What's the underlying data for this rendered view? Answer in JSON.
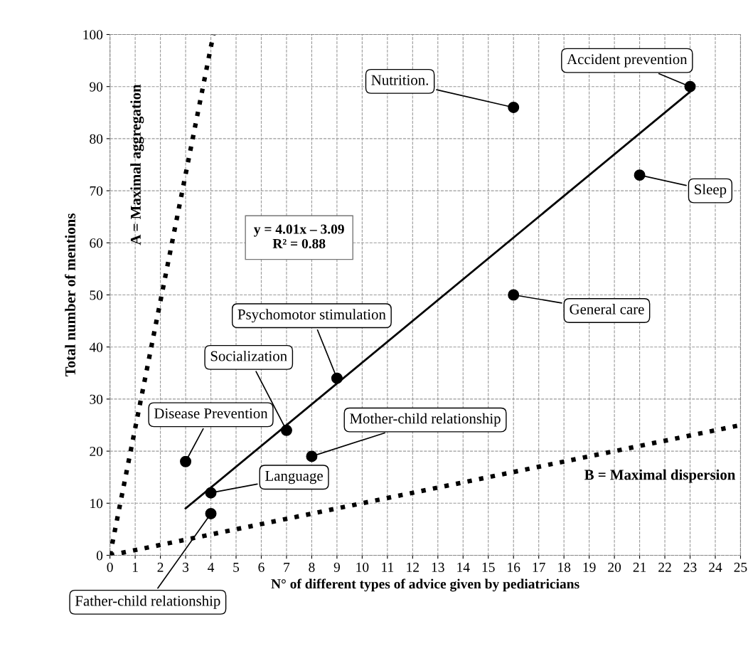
{
  "chart_data": {
    "type": "scatter",
    "xlabel": "N° of different types of advice given by pediatricians",
    "ylabel": "Total number of mentions",
    "xlim": [
      0,
      25
    ],
    "ylim": [
      0,
      100
    ],
    "xticks": [
      0,
      1,
      2,
      3,
      4,
      5,
      6,
      7,
      8,
      9,
      10,
      11,
      12,
      13,
      14,
      15,
      16,
      17,
      18,
      19,
      20,
      21,
      22,
      23,
      24,
      25
    ],
    "yticks": [
      0,
      10,
      20,
      30,
      40,
      50,
      60,
      70,
      80,
      90,
      100
    ],
    "grid": true,
    "series": [
      {
        "type": "scatter",
        "marker": "circle",
        "color": "#000000",
        "x": [
          23,
          16,
          21,
          16,
          9,
          7,
          3,
          8,
          4,
          4
        ],
        "values": [
          90,
          86,
          73,
          50,
          34,
          24,
          18,
          19,
          12,
          8
        ]
      },
      {
        "type": "line",
        "color": "#000000",
        "line_style": "solid",
        "x": [
          3,
          23
        ],
        "values": [
          9,
          89
        ]
      },
      {
        "type": "line",
        "name": "A = Maximal aggregation",
        "color": "#000000",
        "line_style": "dotted",
        "x": [
          0,
          4.1
        ],
        "values": [
          0,
          100
        ]
      },
      {
        "type": "line",
        "name": "B = Maximal dispersion",
        "color": "#000000",
        "line_style": "dotted",
        "x": [
          0,
          25
        ],
        "values": [
          0,
          25
        ]
      }
    ],
    "annotations": [
      {
        "text": "Accident prevention",
        "x": 23,
        "y": 90
      },
      {
        "text": "Nutrition.",
        "x": 16,
        "y": 86
      },
      {
        "text": "Sleep",
        "x": 21,
        "y": 73
      },
      {
        "text": "General care",
        "x": 16,
        "y": 50
      },
      {
        "text": "Psychomotor stimulation",
        "x": 9,
        "y": 34
      },
      {
        "text": "Socialization",
        "x": 7,
        "y": 24
      },
      {
        "text": "Disease Prevention",
        "x": 3,
        "y": 18
      },
      {
        "text": "Mother-child relationship",
        "x": 8,
        "y": 19
      },
      {
        "text": "Language",
        "x": 4,
        "y": 12
      },
      {
        "text": "Father-child relationship",
        "x": 4,
        "y": 8
      },
      "y = 4.01x – 3.09\nR² = 0.88"
    ]
  }
}
